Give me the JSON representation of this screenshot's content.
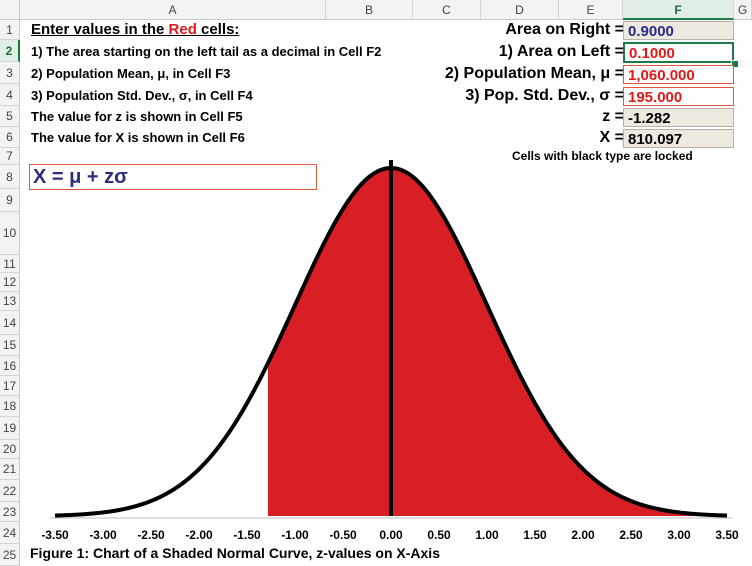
{
  "columns": [
    "A",
    "B",
    "C",
    "D",
    "E",
    "F",
    "G"
  ],
  "rows": [
    "1",
    "2",
    "3",
    "4",
    "5",
    "6",
    "7",
    "8",
    "9",
    "10",
    "11",
    "12",
    "13",
    "14",
    "15",
    "16",
    "17",
    "18",
    "19",
    "20",
    "21",
    "22",
    "23",
    "24",
    "25"
  ],
  "instructions": {
    "heading_prefix": "Enter values in the ",
    "heading_red": "Red",
    "heading_suffix": " cells:",
    "line1": "1) The area starting on the left tail as a decimal in Cell F2",
    "line2": "2) Population Mean, μ, in Cell F3",
    "line3": "3) Population Std. Dev., σ, in Cell F4",
    "line4": "The value for z is shown in Cell F5",
    "line5": "The value for X is shown in Cell F6"
  },
  "labels": {
    "area_right": "Area on Right =",
    "area_left": "1) Area on Left =",
    "pop_mean": "2) Population Mean, μ =",
    "pop_sd": "3) Pop. Std. Dev., σ =",
    "z": "z =",
    "x": "X ="
  },
  "values": {
    "area_right": "0.9000",
    "area_left": "0.1000",
    "pop_mean": "1,060.000",
    "pop_sd": "195.000",
    "z": "-1.282",
    "x": "810.097"
  },
  "note": "Cells with black type are locked",
  "formula": "X = μ + zσ",
  "caption": "Figure 1: Chart of a Shaded Normal Curve, z-values on X-Axis",
  "colors": {
    "shade": "#d91f26",
    "input_text": "#e01919",
    "formula_text": "#2c2f7c",
    "locked_fill": "#ede9e0",
    "selection": "#1e7b45"
  },
  "chart_data": {
    "type": "area",
    "distribution": "standard normal",
    "x_range": [
      -3.5,
      3.5
    ],
    "y_range": [
      0,
      0.4
    ],
    "shade_from_z": -1.282,
    "shade_to_z": 3.5,
    "mean_line_z": 0,
    "tick_labels": [
      "-3.50",
      "-3.00",
      "-2.50",
      "-2.00",
      "-1.50",
      "-1.00",
      "-0.50",
      "0.00",
      "0.50",
      "1.00",
      "1.50",
      "2.00",
      "2.50",
      "3.00",
      "3.50"
    ],
    "ticks": [
      -3.5,
      -3,
      -2.5,
      -2,
      -1.5,
      -1,
      -0.5,
      0,
      0.5,
      1,
      1.5,
      2,
      2.5,
      3,
      3.5
    ]
  }
}
